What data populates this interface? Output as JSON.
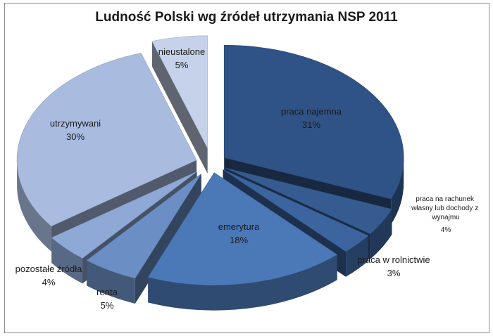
{
  "chart_data": {
    "type": "pie",
    "title": "Ludność Polski wg źródeł utrzymania NSP 2011",
    "slices": [
      {
        "label": "praca najemna",
        "percent_label": "31%",
        "value": 31,
        "color": "#2f5386"
      },
      {
        "label": "praca na rachunek własny lub dochody z wynajmu",
        "percent_label": "4%",
        "value": 4,
        "color": "#355b90"
      },
      {
        "label": "praca w rolnictwie",
        "percent_label": "3%",
        "value": 3,
        "color": "#3c65a0"
      },
      {
        "label": "emerytura",
        "percent_label": "18%",
        "value": 18,
        "color": "#4b79b8"
      },
      {
        "label": "renta",
        "percent_label": "5%",
        "value": 5,
        "color": "#6b8fc4"
      },
      {
        "label": "pozostałe źródła",
        "percent_label": "4%",
        "value": 4,
        "color": "#8ea9d6"
      },
      {
        "label": "utrzymywani",
        "percent_label": "30%",
        "value": 30,
        "color": "#a9bce0"
      },
      {
        "label": "nieustalone",
        "percent_label": "5%",
        "value": 5,
        "color": "#c6d2ea"
      }
    ],
    "legend": "none"
  }
}
